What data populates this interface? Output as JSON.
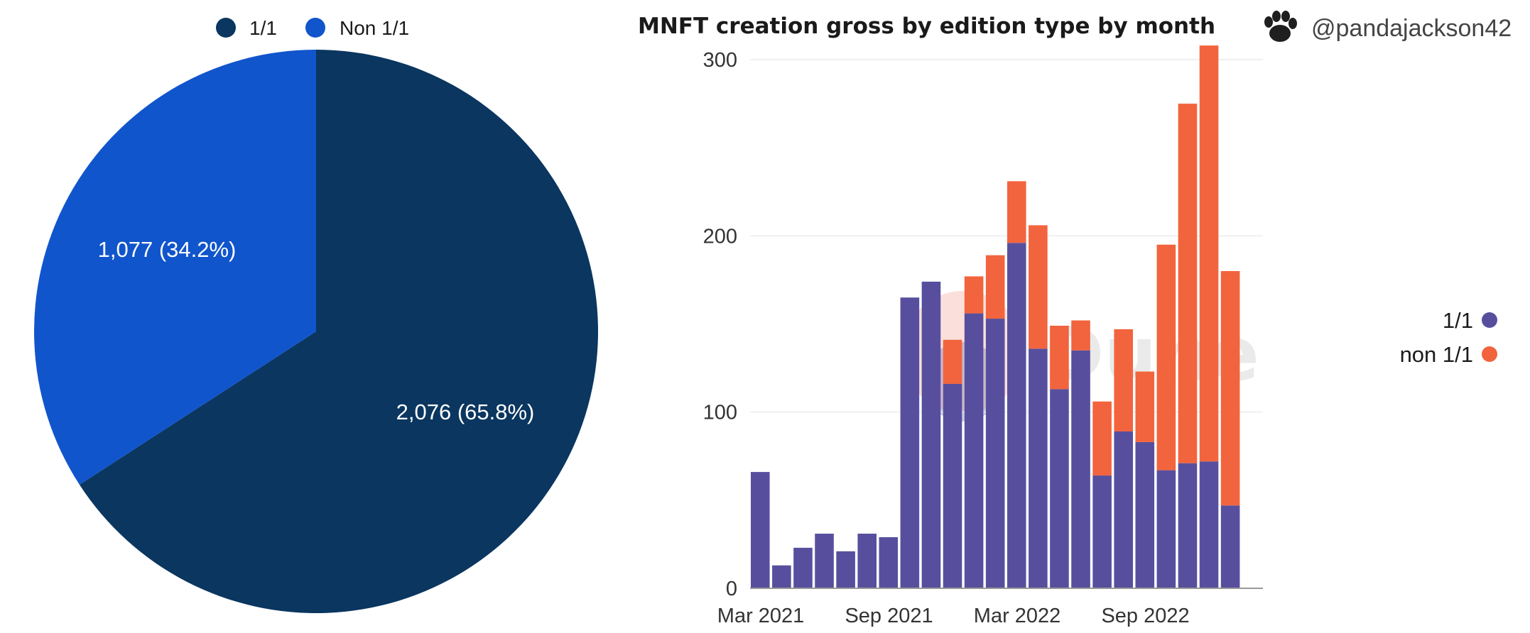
{
  "chart_data": [
    {
      "type": "pie",
      "title": "",
      "legend": {
        "placement": "top",
        "entries": [
          {
            "label": "1/1",
            "color": "#0a3660"
          },
          {
            "label": "Non 1/1",
            "color": "#1155cc"
          }
        ]
      },
      "slices": [
        {
          "name": "1/1",
          "value": 2076,
          "label": "2,076 (65.8%)",
          "color": "#0a3660"
        },
        {
          "name": "Non 1/1",
          "value": 1077,
          "label": "1,077 (34.2%)",
          "color": "#1155cc"
        }
      ]
    },
    {
      "type": "bar",
      "stacked": true,
      "title": "MNFT creation gross by edition type by month",
      "handle": "@pandajackson42",
      "handle_icon": "paw-avatar-icon",
      "watermark": "Dune",
      "xlabel": "",
      "ylabel": "",
      "ylim": [
        0,
        300
      ],
      "yticks": [
        0,
        100,
        200,
        300
      ],
      "grid": true,
      "xtick_labels": [
        "Mar 2021",
        "Sep 2021",
        "Mar 2022",
        "Sep 2022"
      ],
      "xtick_categories": [
        "2021-03",
        "2021-09",
        "2022-03",
        "2022-09"
      ],
      "legend": {
        "placement": "right",
        "entries": [
          {
            "label": "1/1",
            "color": "#574f9e"
          },
          {
            "label": "non 1/1",
            "color": "#f2643d"
          }
        ]
      },
      "categories": [
        "2021-03",
        "2021-04",
        "2021-05",
        "2021-06",
        "2021-07",
        "2021-08",
        "2021-09",
        "2021-10",
        "2021-11",
        "2021-12",
        "2022-01",
        "2022-02",
        "2022-03",
        "2022-04",
        "2022-05",
        "2022-06",
        "2022-07",
        "2022-08",
        "2022-09",
        "2022-10",
        "2022-11",
        "2022-12",
        "2023-01",
        "2023-02"
      ],
      "series": [
        {
          "name": "1/1",
          "color": "#574f9e",
          "values": [
            66,
            13,
            23,
            31,
            21,
            31,
            29,
            165,
            174,
            116,
            156,
            153,
            196,
            136,
            113,
            135,
            64,
            89,
            83,
            67,
            71,
            72,
            47,
            0
          ]
        },
        {
          "name": "non 1/1",
          "color": "#f2643d",
          "values": [
            0,
            0,
            0,
            0,
            0,
            0,
            0,
            0,
            0,
            25,
            21,
            36,
            35,
            70,
            36,
            17,
            42,
            58,
            40,
            128,
            204,
            236,
            133,
            0
          ]
        }
      ]
    }
  ]
}
